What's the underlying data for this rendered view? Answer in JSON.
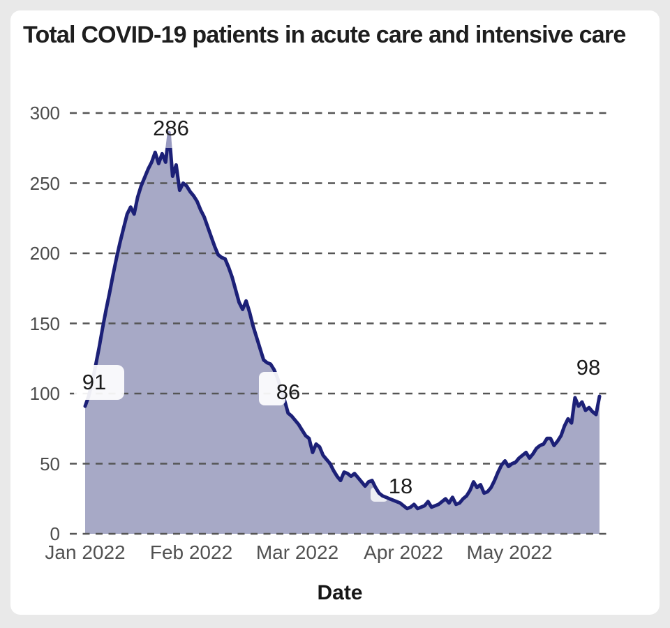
{
  "chart_data": {
    "type": "area",
    "title": "Total COVID-19 patients in acute care and intensive care",
    "xlabel": "Date",
    "ylabel": "",
    "ylim": [
      0,
      300
    ],
    "y_ticks": [
      300,
      250,
      200,
      150,
      100,
      50,
      0
    ],
    "x_tick_labels": [
      "Jan 2022",
      "Feb 2022",
      "Mar 2022",
      "Apr 2022",
      "May 2022"
    ],
    "grid": "horizontal-dashed",
    "legend": "none",
    "colors": {
      "line": "#1c2077",
      "fill": "#a7a9c6",
      "grid": "#555555",
      "page_background": "#e9e9e9",
      "card_background": "#ffffff"
    },
    "series": [
      {
        "name": "Total COVID-19 patients in acute care and intensive care",
        "start_date": "2022-01-01",
        "frequency": "daily",
        "values": [
          91,
          98,
          108,
          120,
          133,
          147,
          160,
          172,
          185,
          197,
          208,
          218,
          228,
          233,
          228,
          240,
          248,
          254,
          260,
          265,
          272,
          264,
          271,
          265,
          286,
          255,
          263,
          245,
          250,
          248,
          244,
          241,
          237,
          231,
          226,
          219,
          212,
          205,
          199,
          197,
          196,
          190,
          183,
          174,
          165,
          160,
          166,
          158,
          148,
          140,
          132,
          124,
          122,
          121,
          117,
          111,
          103,
          95,
          86,
          84,
          81,
          78,
          74,
          70,
          68,
          58,
          64,
          62,
          56,
          53,
          50,
          45,
          41,
          38,
          44,
          43,
          41,
          43,
          40,
          37,
          34,
          37,
          38,
          33,
          29,
          27,
          26,
          25,
          24,
          23,
          22,
          20,
          18,
          19,
          21,
          18,
          19,
          20,
          23,
          19,
          20,
          21,
          23,
          25,
          22,
          26,
          21,
          22,
          25,
          27,
          31,
          37,
          33,
          35,
          29,
          30,
          33,
          38,
          44,
          49,
          52,
          48,
          50,
          51,
          54,
          56,
          58,
          54,
          57,
          61,
          63,
          64,
          68,
          68,
          63,
          66,
          70,
          77,
          82,
          79,
          97,
          91,
          94,
          88,
          90,
          87,
          85,
          98
        ]
      }
    ],
    "annotations": [
      {
        "label": "91",
        "day": 0,
        "value": 91
      },
      {
        "label": "286",
        "day": 24,
        "value": 286
      },
      {
        "label": "86",
        "day": 58,
        "value": 86
      },
      {
        "label": "18",
        "day": 92,
        "value": 18
      },
      {
        "label": "98",
        "day": 147,
        "value": 98
      }
    ]
  }
}
